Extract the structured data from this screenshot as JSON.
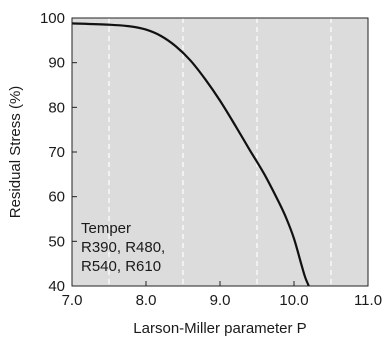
{
  "chart_data": {
    "type": "line",
    "xlabel": "Larson-Miller parameter P",
    "ylabel": "Residual Stress (%)",
    "xlim": [
      7.0,
      11.0
    ],
    "ylim": [
      40,
      100
    ],
    "xticks": [
      "7.0",
      "8.0",
      "9.0",
      "10.0",
      "11.0"
    ],
    "yticks": [
      "40",
      "50",
      "60",
      "70",
      "80",
      "90",
      "100"
    ],
    "minor_x_gridlines": [
      7.5,
      8.5,
      9.5,
      10.5
    ],
    "grid": "vertical dashed white at half-units",
    "background": "#dcdcdc",
    "line_color": "#111111",
    "annotation": {
      "title": "Temper",
      "lines": [
        "R390, R480,",
        "R540, R610"
      ]
    },
    "series": [
      {
        "x": [
          7.0,
          7.5,
          7.8,
          8.0,
          8.2,
          8.4,
          8.6,
          8.8,
          9.0,
          9.2,
          9.4,
          9.6,
          9.8,
          9.9,
          10.0,
          10.1,
          10.15,
          10.2
        ],
        "y": [
          98.8,
          98.5,
          98.1,
          97.4,
          96.0,
          93.7,
          90.5,
          86.3,
          81.5,
          76.1,
          70.5,
          65.0,
          58.6,
          55.0,
          50.6,
          44.8,
          42.0,
          40.0
        ]
      }
    ]
  }
}
